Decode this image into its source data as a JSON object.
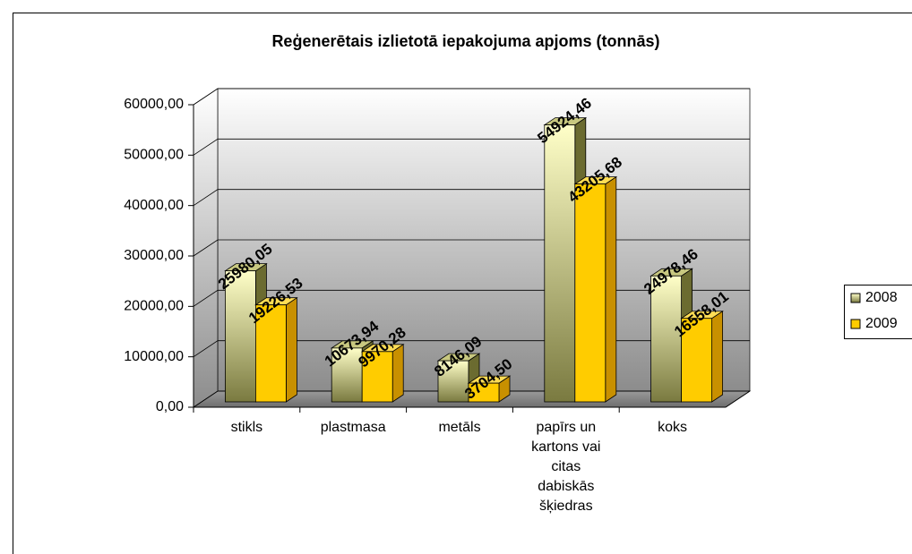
{
  "chart_data": {
    "type": "bar3d",
    "title": "Reģenerētais izlietotā iepakojuma apjoms (tonnās)",
    "categories": [
      "stikls",
      "plastmasa",
      "metāls",
      "papīrs un kartons vai citas dabiskās šķiedras",
      "koks"
    ],
    "series": [
      {
        "name": "2008",
        "color": "#ffffc0",
        "values": [
          25980.05,
          10673.94,
          8146.09,
          54924.46,
          24978.46
        ],
        "value_labels": [
          "25980,05",
          "10673,94",
          "8146,09",
          "54924,46",
          "24978,46"
        ]
      },
      {
        "name": "2009",
        "color": "#ffcc00",
        "values": [
          19226.53,
          9970.28,
          3704.5,
          43205.68,
          16558.01
        ],
        "value_labels": [
          "19226,53",
          "9970,28",
          "3704,50",
          "43205,68",
          "16558,01"
        ]
      }
    ],
    "ylim": [
      0,
      60000
    ],
    "yticks": [
      {
        "value": 0,
        "label": "0,00"
      },
      {
        "value": 10000,
        "label": "10000,00"
      },
      {
        "value": 20000,
        "label": "20000,00"
      },
      {
        "value": 30000,
        "label": "30000,00"
      },
      {
        "value": 40000,
        "label": "40000,00"
      },
      {
        "value": 50000,
        "label": "50000,00"
      },
      {
        "value": 60000,
        "label": "60000,00"
      }
    ],
    "grid": true,
    "legend": "right"
  }
}
